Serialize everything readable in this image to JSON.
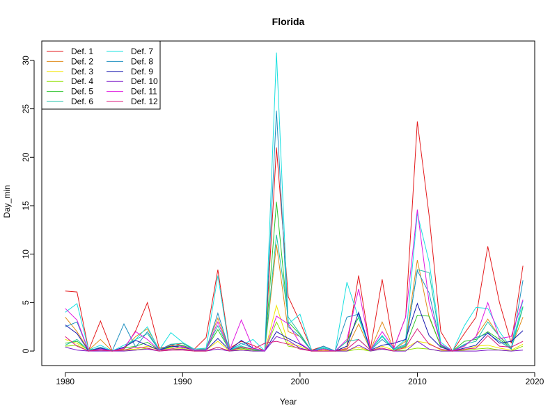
{
  "chart_data": {
    "type": "line",
    "title": "Florida",
    "xlabel": "Year",
    "ylabel": "Day_min",
    "xlim": [
      1978,
      2020
    ],
    "ylim": [
      -1.5,
      32
    ],
    "x_ticks": [
      1980,
      1990,
      2000,
      2010,
      2020
    ],
    "y_ticks": [
      0,
      5,
      10,
      15,
      20,
      25,
      30
    ],
    "legend_position": "top-left",
    "x": [
      1980,
      1981,
      1982,
      1983,
      1984,
      1985,
      1986,
      1987,
      1988,
      1989,
      1990,
      1991,
      1992,
      1993,
      1994,
      1995,
      1996,
      1997,
      1998,
      1999,
      2000,
      2001,
      2002,
      2003,
      2004,
      2005,
      2006,
      2007,
      2008,
      2009,
      2010,
      2011,
      2012,
      2013,
      2014,
      2015,
      2016,
      2017,
      2018,
      2019
    ],
    "series": [
      {
        "name": "Def. 1",
        "color": "#E41A1C",
        "values": [
          6.2,
          6.1,
          0.1,
          3.1,
          0,
          0.2,
          2.1,
          5.0,
          0.3,
          0.5,
          0.8,
          0.2,
          1.4,
          8.4,
          0.3,
          1.0,
          0.6,
          0,
          21.0,
          5.6,
          3.0,
          0.1,
          0.5,
          0,
          0.5,
          7.8,
          0.2,
          7.4,
          0.3,
          3.5,
          23.7,
          14.0,
          2.0,
          0,
          1.8,
          3.5,
          10.8,
          5.0,
          0.8,
          8.8
        ]
      },
      {
        "name": "Def. 2",
        "color": "#E08C1A",
        "values": [
          3.5,
          2.0,
          0.1,
          1.2,
          0,
          0.2,
          1.5,
          2.3,
          0.2,
          0.6,
          0.6,
          0.1,
          0.3,
          3.4,
          0.1,
          0.4,
          0.2,
          0,
          11.0,
          2.0,
          1.5,
          0,
          0.2,
          0,
          0.3,
          2.8,
          0.1,
          3.0,
          0.2,
          1.0,
          9.4,
          3.5,
          0.5,
          0,
          0.5,
          1.5,
          3.3,
          1.5,
          0.4,
          3.5
        ]
      },
      {
        "name": "Def. 3",
        "color": "#F2E600",
        "values": [
          1.2,
          0.8,
          0.1,
          0.2,
          0,
          0.1,
          0.2,
          0.5,
          0.1,
          0.3,
          0.3,
          0,
          0.1,
          1.0,
          0,
          0.2,
          0.1,
          0,
          4.7,
          0.8,
          0.5,
          0,
          0.1,
          0,
          0.1,
          0.4,
          0,
          0.5,
          0.1,
          0.3,
          1.0,
          0.8,
          0.1,
          0,
          0.1,
          0.5,
          0.6,
          0.3,
          0.1,
          0.7
        ]
      },
      {
        "name": "Def. 4",
        "color": "#90E000",
        "values": [
          0.5,
          0.6,
          0,
          0.1,
          0,
          0.1,
          0.1,
          0.3,
          0,
          0.2,
          0.2,
          0,
          0,
          0.4,
          0,
          0.1,
          0,
          0,
          3.0,
          0.5,
          0.3,
          0,
          0,
          0,
          0,
          0.2,
          0,
          0.2,
          0,
          0.1,
          0.3,
          0.2,
          0,
          0,
          0.1,
          0.2,
          0.3,
          0.1,
          0,
          0.5
        ]
      },
      {
        "name": "Def. 5",
        "color": "#2CC62C",
        "values": [
          0.8,
          1.0,
          0.1,
          0.3,
          0,
          0.3,
          0.5,
          0.9,
          0.1,
          0.4,
          0.6,
          0.1,
          0.2,
          2.2,
          0.1,
          0.3,
          0.1,
          0,
          15.4,
          3.0,
          1.7,
          0,
          0.2,
          0,
          1.0,
          3.5,
          0.1,
          1.6,
          0.1,
          0.5,
          3.7,
          3.6,
          0.5,
          0,
          1.0,
          1.2,
          2.0,
          1.2,
          0.3,
          4.6
        ]
      },
      {
        "name": "Def. 6",
        "color": "#20C2A8",
        "values": [
          0.6,
          1.2,
          0,
          0.2,
          0,
          0.4,
          1.2,
          1.8,
          0.1,
          0.7,
          0.8,
          0.1,
          0.2,
          2.6,
          0.1,
          0.5,
          0.2,
          0,
          12.0,
          3.5,
          1.8,
          0,
          0.3,
          0,
          1.0,
          1.2,
          0.1,
          1.5,
          0.1,
          0.6,
          8.4,
          8.1,
          0.7,
          0,
          0.7,
          1.0,
          3.0,
          1.5,
          0.2,
          4.5
        ]
      },
      {
        "name": "Def. 7",
        "color": "#17E0E0",
        "values": [
          4.0,
          4.9,
          0.1,
          0.6,
          0,
          0.6,
          1.2,
          2.5,
          0.1,
          1.9,
          0.9,
          0.2,
          0.3,
          7.8,
          0.1,
          0.6,
          1.2,
          0,
          30.8,
          2.8,
          3.8,
          0,
          0.4,
          0,
          7.1,
          3.4,
          0.1,
          1.6,
          0.2,
          1.2,
          14.2,
          9.2,
          0.9,
          0,
          2.6,
          4.5,
          4.4,
          2.0,
          0.3,
          5.2
        ]
      },
      {
        "name": "Def. 8",
        "color": "#1F90C0",
        "values": [
          2.5,
          3.0,
          0,
          0.4,
          0,
          2.8,
          0.4,
          2.0,
          0.1,
          0.7,
          0.5,
          0.1,
          0.1,
          3.9,
          0.1,
          0.8,
          0.3,
          0,
          24.8,
          2.5,
          1.5,
          0,
          0.5,
          0,
          3.5,
          3.8,
          0.1,
          1.2,
          0.2,
          0.7,
          8.3,
          6.0,
          0.6,
          0,
          0.6,
          1.4,
          1.8,
          1.0,
          0.2,
          7.3
        ]
      },
      {
        "name": "Def. 9",
        "color": "#1A1AB0",
        "values": [
          2.7,
          1.8,
          0,
          0.3,
          0,
          0.4,
          1.1,
          0.6,
          0.1,
          0.5,
          0.4,
          0.1,
          0.1,
          1.3,
          0.1,
          1.1,
          0.3,
          0,
          2.0,
          1.3,
          0.7,
          0,
          0.2,
          0,
          0.5,
          4.0,
          0.1,
          0.6,
          0.8,
          1.2,
          4.9,
          1.6,
          0.4,
          0,
          0.3,
          0.6,
          1.9,
          0.8,
          1.0,
          2.1
        ]
      },
      {
        "name": "Def. 10",
        "color": "#7A18C8",
        "values": [
          0.4,
          0.1,
          0,
          0,
          0,
          0,
          0.1,
          0.2,
          0,
          0.1,
          0.2,
          0,
          0,
          0.2,
          0,
          0.1,
          0,
          0,
          1.5,
          1.1,
          0.3,
          0,
          0,
          0,
          0,
          0.6,
          0,
          0.2,
          0,
          0,
          1.0,
          0.2,
          0,
          0,
          0,
          0,
          0.1,
          0.1,
          0,
          0.1
        ]
      },
      {
        "name": "Def. 11",
        "color": "#E018E0",
        "values": [
          4.4,
          3.2,
          0,
          0.2,
          0,
          0.3,
          2.0,
          1.2,
          0.1,
          0.2,
          0.5,
          0.1,
          0.1,
          3.0,
          0.1,
          3.2,
          0.3,
          0,
          3.6,
          2.8,
          0.8,
          0,
          0.2,
          0,
          1.2,
          6.4,
          0.1,
          2.0,
          0.3,
          3.5,
          14.6,
          5.0,
          0.7,
          0,
          0.5,
          1.5,
          5.0,
          1.3,
          1.5,
          5.3
        ]
      },
      {
        "name": "Def. 12",
        "color": "#D8187C",
        "values": [
          1.5,
          0.5,
          0,
          0.1,
          0,
          0.1,
          0.4,
          0.3,
          0,
          0.1,
          0.1,
          0,
          0,
          0.4,
          0,
          0.4,
          0.2,
          0.8,
          1.0,
          0.7,
          0.2,
          0,
          0,
          0,
          0.2,
          1.2,
          0.1,
          0.3,
          0,
          0.4,
          2.3,
          0.7,
          0.2,
          0,
          0.2,
          0.3,
          1.6,
          0.5,
          0.4,
          1.0
        ]
      }
    ]
  }
}
